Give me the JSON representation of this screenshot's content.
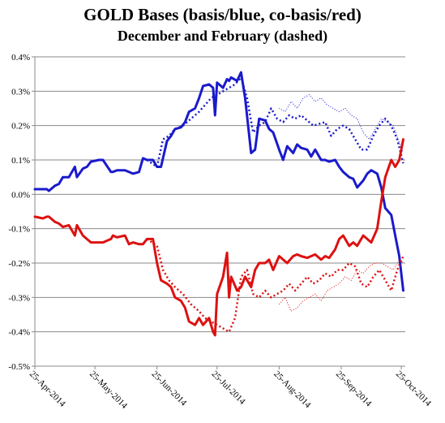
{
  "chart_data": {
    "type": "line",
    "title": "GOLD Bases (basis/blue, co-basis/red)",
    "subtitle": "December and February (dashed)",
    "xlabel": "",
    "ylabel": "",
    "ylim": [
      -0.5,
      0.4
    ],
    "ytick_labels": [
      "0.4%",
      "0.3%",
      "0.2%",
      "0.1%",
      "0.0%",
      "-0.1%",
      "-0.2%",
      "-0.3%",
      "-0.4%",
      "-0.5%"
    ],
    "yticks": [
      0.4,
      0.3,
      0.2,
      0.1,
      0.0,
      -0.1,
      -0.2,
      -0.3,
      -0.4,
      -0.5
    ],
    "xtick_labels": [
      "25-Apr-2014",
      "25-May-2014",
      "25-Jun-2014",
      "25-Jul-2014",
      "25-Aug-2014",
      "25-Sep-2014",
      "25-Oct-2014"
    ],
    "xticks": [
      "2014-04-25",
      "2014-05-25",
      "2014-06-25",
      "2014-07-25",
      "2014-08-25",
      "2014-09-25",
      "2014-10-25"
    ],
    "xrange": [
      "2014-04-25",
      "2014-10-27"
    ],
    "grid": "horizontal",
    "legend": "none",
    "colors": {
      "blue": "#1a1acc",
      "red": "#dd1111"
    },
    "series": [
      {
        "color": "#1a1acc",
        "style": "solid",
        "width": 3,
        "x": [
          "2014-04-25",
          "2014-04-29",
          "2014-05-01",
          "2014-05-02",
          "2014-05-05",
          "2014-05-07",
          "2014-05-09",
          "2014-05-12",
          "2014-05-13",
          "2014-05-15",
          "2014-05-16",
          "2014-05-19",
          "2014-05-21",
          "2014-05-23",
          "2014-05-27",
          "2014-05-29",
          "2014-06-02",
          "2014-06-03",
          "2014-06-05",
          "2014-06-09",
          "2014-06-11",
          "2014-06-13",
          "2014-06-16",
          "2014-06-18",
          "2014-06-20",
          "2014-06-23",
          "2014-06-25",
          "2014-06-27",
          "2014-06-30",
          "2014-07-02",
          "2014-07-04",
          "2014-07-07",
          "2014-07-09",
          "2014-07-11",
          "2014-07-14",
          "2014-07-16",
          "2014-07-18",
          "2014-07-21",
          "2014-07-23",
          "2014-07-24",
          "2014-07-25",
          "2014-07-28",
          "2014-07-30",
          "2014-07-31",
          "2014-08-01",
          "2014-08-04",
          "2014-08-06",
          "2014-08-08",
          "2014-08-11",
          "2014-08-13",
          "2014-08-15",
          "2014-08-18",
          "2014-08-20",
          "2014-08-22",
          "2014-08-25",
          "2014-08-27",
          "2014-08-29",
          "2014-09-01",
          "2014-09-03",
          "2014-09-05",
          "2014-09-08",
          "2014-09-10",
          "2014-09-12",
          "2014-09-15",
          "2014-09-17",
          "2014-09-19",
          "2014-09-22",
          "2014-09-24",
          "2014-09-26",
          "2014-09-29",
          "2014-10-01",
          "2014-10-03",
          "2014-10-06",
          "2014-10-08",
          "2014-10-10",
          "2014-10-13",
          "2014-10-15",
          "2014-10-17",
          "2014-10-20",
          "2014-10-22",
          "2014-10-24",
          "2014-10-26"
        ],
        "y": [
          0.015,
          0.015,
          0.015,
          0.01,
          0.025,
          0.03,
          0.05,
          0.05,
          0.06,
          0.08,
          0.05,
          0.075,
          0.08,
          0.095,
          0.1,
          0.1,
          0.065,
          0.065,
          0.07,
          0.07,
          0.065,
          0.06,
          0.065,
          0.105,
          0.1,
          0.1,
          0.08,
          0.08,
          0.155,
          0.17,
          0.19,
          0.195,
          0.21,
          0.24,
          0.25,
          0.28,
          0.315,
          0.32,
          0.31,
          0.23,
          0.325,
          0.31,
          0.335,
          0.33,
          0.34,
          0.33,
          0.355,
          0.28,
          0.12,
          0.13,
          0.22,
          0.215,
          0.19,
          0.18,
          0.13,
          0.1,
          0.14,
          0.12,
          0.145,
          0.135,
          0.13,
          0.11,
          0.13,
          0.1,
          0.1,
          0.095,
          0.1,
          0.08,
          0.065,
          0.05,
          0.045,
          0.02,
          0.04,
          0.06,
          0.07,
          0.06,
          0.02,
          -0.04,
          -0.06,
          -0.12,
          -0.18,
          -0.28
        ]
      },
      {
        "color": "#1a1acc",
        "style": "dotted",
        "width": 2.5,
        "x": [
          "2014-06-20",
          "2014-06-25",
          "2014-06-28",
          "2014-07-01",
          "2014-07-04",
          "2014-07-08",
          "2014-07-12",
          "2014-07-16",
          "2014-07-19",
          "2014-07-22",
          "2014-07-25",
          "2014-07-28",
          "2014-07-31",
          "2014-08-03",
          "2014-08-06",
          "2014-08-09",
          "2014-08-12",
          "2014-08-15",
          "2014-08-18",
          "2014-08-21",
          "2014-08-24",
          "2014-08-27",
          "2014-08-30",
          "2014-09-02",
          "2014-09-05",
          "2014-09-08",
          "2014-09-11",
          "2014-09-14",
          "2014-09-17",
          "2014-09-20",
          "2014-09-23",
          "2014-09-26",
          "2014-09-29",
          "2014-10-02",
          "2014-10-05",
          "2014-10-08",
          "2014-10-11",
          "2014-10-14",
          "2014-10-17",
          "2014-10-20",
          "2014-10-23",
          "2014-10-26"
        ],
        "y": [
          0.1,
          0.08,
          0.16,
          0.17,
          0.19,
          0.2,
          0.22,
          0.24,
          0.26,
          0.28,
          0.29,
          0.3,
          0.31,
          0.32,
          0.34,
          0.28,
          0.18,
          0.2,
          0.21,
          0.25,
          0.22,
          0.21,
          0.23,
          0.22,
          0.23,
          0.215,
          0.2,
          0.205,
          0.21,
          0.17,
          0.19,
          0.2,
          0.19,
          0.16,
          0.13,
          0.13,
          0.17,
          0.2,
          0.22,
          0.2,
          0.16,
          0.09
        ]
      },
      {
        "color": "#1a1acc",
        "style": "dotted-thin",
        "width": 1,
        "x": [
          "2014-08-25",
          "2014-08-28",
          "2014-08-31",
          "2014-09-03",
          "2014-09-06",
          "2014-09-09",
          "2014-09-12",
          "2014-09-15",
          "2014-09-18",
          "2014-09-21",
          "2014-09-24",
          "2014-09-27",
          "2014-09-30",
          "2014-10-03",
          "2014-10-06",
          "2014-10-09",
          "2014-10-12",
          "2014-10-15",
          "2014-10-18",
          "2014-10-21",
          "2014-10-24",
          "2014-10-26"
        ],
        "y": [
          0.25,
          0.24,
          0.27,
          0.25,
          0.28,
          0.29,
          0.27,
          0.28,
          0.26,
          0.25,
          0.24,
          0.25,
          0.23,
          0.22,
          0.18,
          0.16,
          0.19,
          0.22,
          0.21,
          0.2,
          0.15,
          0.12
        ]
      },
      {
        "color": "#dd1111",
        "style": "solid",
        "width": 3,
        "x": [
          "2014-04-25",
          "2014-04-29",
          "2014-05-01",
          "2014-05-02",
          "2014-05-05",
          "2014-05-07",
          "2014-05-09",
          "2014-05-12",
          "2014-05-13",
          "2014-05-15",
          "2014-05-16",
          "2014-05-19",
          "2014-05-21",
          "2014-05-23",
          "2014-05-27",
          "2014-05-29",
          "2014-06-02",
          "2014-06-03",
          "2014-06-05",
          "2014-06-09",
          "2014-06-11",
          "2014-06-13",
          "2014-06-16",
          "2014-06-18",
          "2014-06-20",
          "2014-06-23",
          "2014-06-25",
          "2014-06-27",
          "2014-06-30",
          "2014-07-02",
          "2014-07-04",
          "2014-07-07",
          "2014-07-09",
          "2014-07-11",
          "2014-07-14",
          "2014-07-16",
          "2014-07-18",
          "2014-07-21",
          "2014-07-23",
          "2014-07-24",
          "2014-07-25",
          "2014-07-28",
          "2014-07-30",
          "2014-07-31",
          "2014-08-01",
          "2014-08-04",
          "2014-08-06",
          "2014-08-08",
          "2014-08-11",
          "2014-08-13",
          "2014-08-15",
          "2014-08-18",
          "2014-08-20",
          "2014-08-22",
          "2014-08-25",
          "2014-08-27",
          "2014-08-29",
          "2014-09-01",
          "2014-09-03",
          "2014-09-05",
          "2014-09-08",
          "2014-09-10",
          "2014-09-12",
          "2014-09-15",
          "2014-09-17",
          "2014-09-19",
          "2014-09-22",
          "2014-09-24",
          "2014-09-26",
          "2014-09-29",
          "2014-10-01",
          "2014-10-03",
          "2014-10-06",
          "2014-10-08",
          "2014-10-10",
          "2014-10-13",
          "2014-10-15",
          "2014-10-17",
          "2014-10-20",
          "2014-10-22",
          "2014-10-24",
          "2014-10-26"
        ],
        "y": [
          -0.065,
          -0.07,
          -0.065,
          -0.065,
          -0.08,
          -0.085,
          -0.095,
          -0.09,
          -0.1,
          -0.12,
          -0.09,
          -0.12,
          -0.13,
          -0.14,
          -0.14,
          -0.14,
          -0.13,
          -0.12,
          -0.125,
          -0.12,
          -0.145,
          -0.14,
          -0.145,
          -0.145,
          -0.13,
          -0.13,
          -0.2,
          -0.25,
          -0.26,
          -0.27,
          -0.3,
          -0.31,
          -0.33,
          -0.37,
          -0.38,
          -0.36,
          -0.38,
          -0.36,
          -0.4,
          -0.41,
          -0.29,
          -0.24,
          -0.17,
          -0.3,
          -0.24,
          -0.28,
          -0.27,
          -0.24,
          -0.27,
          -0.22,
          -0.2,
          -0.2,
          -0.19,
          -0.22,
          -0.18,
          -0.19,
          -0.2,
          -0.18,
          -0.175,
          -0.18,
          -0.185,
          -0.18,
          -0.175,
          -0.19,
          -0.18,
          -0.185,
          -0.16,
          -0.13,
          -0.12,
          -0.15,
          -0.14,
          -0.15,
          -0.12,
          -0.13,
          -0.14,
          -0.1,
          -0.02,
          0.05,
          0.1,
          0.08,
          0.1,
          0.16
        ]
      },
      {
        "color": "#dd1111",
        "style": "dotted",
        "width": 2.5,
        "x": [
          "2014-06-20",
          "2014-06-25",
          "2014-06-28",
          "2014-07-01",
          "2014-07-04",
          "2014-07-08",
          "2014-07-12",
          "2014-07-16",
          "2014-07-19",
          "2014-07-22",
          "2014-07-25",
          "2014-07-28",
          "2014-07-31",
          "2014-08-03",
          "2014-08-06",
          "2014-08-09",
          "2014-08-12",
          "2014-08-15",
          "2014-08-18",
          "2014-08-21",
          "2014-08-24",
          "2014-08-27",
          "2014-08-30",
          "2014-09-02",
          "2014-09-05",
          "2014-09-08",
          "2014-09-11",
          "2014-09-14",
          "2014-09-17",
          "2014-09-20",
          "2014-09-23",
          "2014-09-26",
          "2014-09-29",
          "2014-10-02",
          "2014-10-05",
          "2014-10-08",
          "2014-10-11",
          "2014-10-14",
          "2014-10-17",
          "2014-10-20",
          "2014-10-23",
          "2014-10-26"
        ],
        "y": [
          -0.13,
          -0.15,
          -0.22,
          -0.25,
          -0.27,
          -0.29,
          -0.32,
          -0.34,
          -0.36,
          -0.37,
          -0.38,
          -0.39,
          -0.4,
          -0.36,
          -0.24,
          -0.22,
          -0.29,
          -0.3,
          -0.28,
          -0.3,
          -0.29,
          -0.28,
          -0.26,
          -0.28,
          -0.26,
          -0.24,
          -0.26,
          -0.25,
          -0.23,
          -0.24,
          -0.22,
          -0.22,
          -0.2,
          -0.21,
          -0.26,
          -0.27,
          -0.24,
          -0.22,
          -0.25,
          -0.28,
          -0.22,
          -0.18
        ]
      },
      {
        "color": "#dd1111",
        "style": "dotted-thin",
        "width": 1,
        "x": [
          "2014-08-25",
          "2014-08-28",
          "2014-08-31",
          "2014-09-03",
          "2014-09-06",
          "2014-09-09",
          "2014-09-12",
          "2014-09-15",
          "2014-09-18",
          "2014-09-21",
          "2014-09-24",
          "2014-09-27",
          "2014-09-30",
          "2014-10-03",
          "2014-10-06",
          "2014-10-09",
          "2014-10-12",
          "2014-10-15",
          "2014-10-18",
          "2014-10-21",
          "2014-10-24",
          "2014-10-26"
        ],
        "y": [
          -0.32,
          -0.3,
          -0.34,
          -0.33,
          -0.31,
          -0.3,
          -0.29,
          -0.31,
          -0.28,
          -0.27,
          -0.26,
          -0.24,
          -0.25,
          -0.22,
          -0.23,
          -0.21,
          -0.2,
          -0.2,
          -0.21,
          -0.22,
          -0.19,
          -0.2
        ]
      }
    ]
  }
}
